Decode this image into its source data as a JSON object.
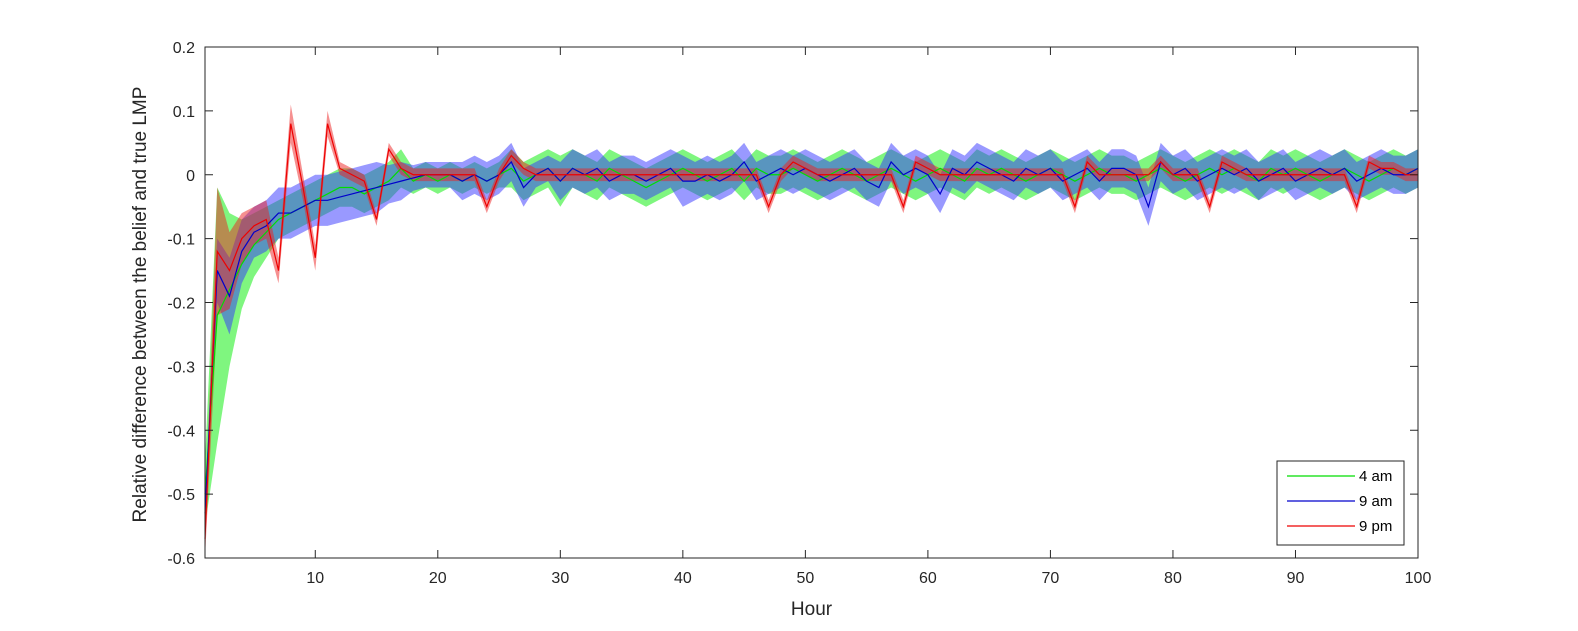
{
  "chart_data": {
    "type": "line",
    "title": "",
    "xlabel": "Hour",
    "ylabel": "Relative difference between the belief and true LMP",
    "xlim": [
      1,
      100
    ],
    "ylim": [
      -0.6,
      0.2
    ],
    "xticks": [
      10,
      20,
      30,
      40,
      50,
      60,
      70,
      80,
      90,
      100
    ],
    "yticks": [
      -0.6,
      -0.5,
      -0.4,
      -0.3,
      -0.2,
      -0.1,
      0,
      0.1,
      0.2
    ],
    "ytick_labels": [
      "-0.6",
      "-0.5",
      "-0.4",
      "-0.3",
      "-0.2",
      "-0.1",
      "0",
      "0.1",
      "0.2"
    ],
    "xtick_labels": [
      "10",
      "20",
      "30",
      "40",
      "50",
      "60",
      "70",
      "80",
      "90",
      "100"
    ],
    "grid": false,
    "box": true,
    "legend_position": "bottom-right",
    "shaded_band": "mean ± spread around each series",
    "series": [
      {
        "name": "4 am",
        "color": "#00dd00",
        "band_color": "#00ee00",
        "x": [
          1,
          2,
          3,
          4,
          5,
          6,
          7,
          8,
          9,
          10,
          11,
          12,
          13,
          14,
          15,
          16,
          17,
          18,
          19,
          20,
          21,
          22,
          23,
          24,
          25,
          26,
          27,
          28,
          29,
          30,
          31,
          32,
          33,
          34,
          35,
          36,
          37,
          38,
          39,
          40,
          41,
          42,
          43,
          44,
          45,
          46,
          47,
          48,
          49,
          50,
          51,
          52,
          53,
          54,
          55,
          56,
          57,
          58,
          59,
          60,
          61,
          62,
          63,
          64,
          65,
          66,
          67,
          68,
          69,
          70,
          71,
          72,
          73,
          74,
          75,
          76,
          77,
          78,
          79,
          80,
          81,
          82,
          83,
          84,
          85,
          86,
          87,
          88,
          89,
          90,
          91,
          92,
          93,
          94,
          95,
          96,
          97,
          98,
          99,
          100
        ],
        "y": [
          -0.5,
          -0.22,
          -0.18,
          -0.14,
          -0.11,
          -0.09,
          -0.07,
          -0.06,
          -0.05,
          -0.04,
          -0.03,
          -0.02,
          -0.02,
          -0.03,
          -0.02,
          -0.01,
          0.01,
          -0.01,
          0.0,
          -0.01,
          0.0,
          -0.01,
          0.0,
          -0.01,
          0.0,
          0.01,
          -0.01,
          0.0,
          0.01,
          -0.01,
          0.01,
          0.0,
          -0.01,
          0.01,
          0.0,
          -0.01,
          -0.02,
          -0.01,
          0.0,
          0.01,
          0.0,
          -0.01,
          0.0,
          0.01,
          -0.01,
          0.01,
          0.0,
          0.0,
          0.01,
          0.0,
          -0.01,
          0.0,
          0.01,
          0.0,
          -0.01,
          0.0,
          0.01,
          0.0,
          -0.01,
          0.0,
          0.01,
          0.0,
          -0.01,
          0.01,
          0.0,
          0.01,
          0.0,
          -0.01,
          0.0,
          0.01,
          0.0,
          -0.01,
          0.0,
          0.01,
          0.0,
          0.0,
          -0.01,
          0.0,
          0.01,
          0.0,
          -0.01,
          0.0,
          0.01,
          0.0,
          0.01,
          0.0,
          -0.01,
          0.01,
          0.0,
          0.01,
          0.0,
          -0.01,
          0.0,
          0.01,
          0.0,
          -0.01,
          0.0,
          0.01,
          0.0,
          0.01
        ],
        "spread": [
          0.05,
          0.2,
          0.12,
          0.07,
          0.05,
          0.04,
          0.03,
          0.03,
          0.03,
          0.03,
          0.03,
          0.03,
          0.03,
          0.03,
          0.03,
          0.03,
          0.03,
          0.02,
          0.02,
          0.02,
          0.02,
          0.02,
          0.02,
          0.02,
          0.02,
          0.03,
          0.03,
          0.03,
          0.03,
          0.04,
          0.03,
          0.03,
          0.03,
          0.03,
          0.03,
          0.03,
          0.03,
          0.03,
          0.03,
          0.03,
          0.03,
          0.03,
          0.03,
          0.03,
          0.03,
          0.03,
          0.03,
          0.03,
          0.03,
          0.03,
          0.03,
          0.03,
          0.03,
          0.03,
          0.03,
          0.03,
          0.03,
          0.03,
          0.03,
          0.03,
          0.03,
          0.03,
          0.03,
          0.03,
          0.03,
          0.03,
          0.03,
          0.03,
          0.03,
          0.03,
          0.03,
          0.03,
          0.03,
          0.03,
          0.03,
          0.03,
          0.03,
          0.03,
          0.03,
          0.03,
          0.03,
          0.03,
          0.03,
          0.03,
          0.03,
          0.03,
          0.03,
          0.03,
          0.03,
          0.03,
          0.03,
          0.03,
          0.03,
          0.03,
          0.03,
          0.03,
          0.03,
          0.03,
          0.03,
          0.03
        ]
      },
      {
        "name": "9 am",
        "color": "#0000cc",
        "band_color": "#3333ff",
        "x": [
          1,
          2,
          3,
          4,
          5,
          6,
          7,
          8,
          9,
          10,
          11,
          12,
          13,
          14,
          15,
          16,
          17,
          18,
          19,
          20,
          21,
          22,
          23,
          24,
          25,
          26,
          27,
          28,
          29,
          30,
          31,
          32,
          33,
          34,
          35,
          36,
          37,
          38,
          39,
          40,
          41,
          42,
          43,
          44,
          45,
          46,
          47,
          48,
          49,
          50,
          51,
          52,
          53,
          54,
          55,
          56,
          57,
          58,
          59,
          60,
          61,
          62,
          63,
          64,
          65,
          66,
          67,
          68,
          69,
          70,
          71,
          72,
          73,
          74,
          75,
          76,
          77,
          78,
          79,
          80,
          81,
          82,
          83,
          84,
          85,
          86,
          87,
          88,
          89,
          90,
          91,
          92,
          93,
          94,
          95,
          96,
          97,
          98,
          99,
          100
        ],
        "y": [
          -0.53,
          -0.15,
          -0.19,
          -0.12,
          -0.09,
          -0.08,
          -0.06,
          -0.06,
          -0.05,
          -0.04,
          -0.04,
          -0.035,
          -0.03,
          -0.025,
          -0.02,
          -0.015,
          -0.01,
          -0.005,
          0.0,
          0.0,
          0.0,
          -0.01,
          0.0,
          -0.01,
          0.0,
          0.02,
          -0.02,
          0.0,
          0.01,
          -0.01,
          0.01,
          0.0,
          0.01,
          -0.01,
          0.0,
          0.0,
          -0.01,
          0.0,
          0.01,
          -0.01,
          -0.01,
          0.0,
          -0.01,
          0.0,
          0.02,
          -0.01,
          0.0,
          0.01,
          0.0,
          0.01,
          0.0,
          -0.01,
          0.0,
          0.01,
          -0.01,
          -0.02,
          0.02,
          0.0,
          0.01,
          0.0,
          -0.03,
          0.01,
          0.0,
          0.02,
          0.01,
          0.0,
          -0.01,
          0.01,
          0.0,
          0.01,
          -0.01,
          0.0,
          0.01,
          -0.01,
          0.01,
          0.01,
          0.0,
          -0.05,
          0.02,
          0.0,
          0.01,
          -0.01,
          0.0,
          0.01,
          0.0,
          0.01,
          -0.01,
          0.0,
          0.01,
          -0.01,
          0.0,
          0.01,
          0.0,
          0.01,
          -0.01,
          0.0,
          0.01,
          0.0,
          0.0,
          0.01
        ],
        "spread": [
          0.02,
          0.05,
          0.06,
          0.05,
          0.04,
          0.04,
          0.04,
          0.04,
          0.04,
          0.04,
          0.04,
          0.04,
          0.04,
          0.04,
          0.04,
          0.03,
          0.03,
          0.02,
          0.02,
          0.02,
          0.02,
          0.03,
          0.03,
          0.03,
          0.03,
          0.03,
          0.03,
          0.02,
          0.02,
          0.03,
          0.03,
          0.03,
          0.03,
          0.03,
          0.03,
          0.03,
          0.03,
          0.03,
          0.03,
          0.04,
          0.03,
          0.03,
          0.03,
          0.03,
          0.03,
          0.03,
          0.03,
          0.03,
          0.03,
          0.03,
          0.03,
          0.03,
          0.03,
          0.03,
          0.03,
          0.03,
          0.03,
          0.03,
          0.03,
          0.03,
          0.03,
          0.03,
          0.03,
          0.03,
          0.03,
          0.03,
          0.03,
          0.03,
          0.03,
          0.03,
          0.03,
          0.03,
          0.03,
          0.03,
          0.03,
          0.03,
          0.03,
          0.03,
          0.03,
          0.03,
          0.03,
          0.03,
          0.03,
          0.03,
          0.03,
          0.03,
          0.03,
          0.03,
          0.03,
          0.03,
          0.03,
          0.03,
          0.03,
          0.03,
          0.03,
          0.03,
          0.03,
          0.03,
          0.03,
          0.03
        ]
      },
      {
        "name": "9 pm",
        "color": "#ee0000",
        "band_color": "#ee2222",
        "x": [
          1,
          2,
          3,
          4,
          5,
          6,
          7,
          8,
          9,
          10,
          11,
          12,
          13,
          14,
          15,
          16,
          17,
          18,
          19,
          20,
          21,
          22,
          23,
          24,
          25,
          26,
          27,
          28,
          29,
          30,
          31,
          32,
          33,
          34,
          35,
          36,
          37,
          38,
          39,
          40,
          41,
          42,
          43,
          44,
          45,
          46,
          47,
          48,
          49,
          50,
          51,
          52,
          53,
          54,
          55,
          56,
          57,
          58,
          59,
          60,
          61,
          62,
          63,
          64,
          65,
          66,
          67,
          68,
          69,
          70,
          71,
          72,
          73,
          74,
          75,
          76,
          77,
          78,
          79,
          80,
          81,
          82,
          83,
          84,
          85,
          86,
          87,
          88,
          89,
          90,
          91,
          92,
          93,
          94,
          95,
          96,
          97,
          98,
          99,
          100
        ],
        "y": [
          -0.57,
          -0.12,
          -0.15,
          -0.1,
          -0.08,
          -0.07,
          -0.15,
          0.08,
          -0.02,
          -0.13,
          0.08,
          0.01,
          0.0,
          -0.01,
          -0.07,
          0.04,
          0.01,
          0.0,
          0.0,
          0.0,
          0.0,
          0.0,
          0.0,
          -0.05,
          0.0,
          0.03,
          0.01,
          0.0,
          0.0,
          0.0,
          0.0,
          0.0,
          0.0,
          0.0,
          0.0,
          0.0,
          0.0,
          0.0,
          0.0,
          0.0,
          0.0,
          0.0,
          0.0,
          0.0,
          0.0,
          0.0,
          -0.05,
          0.0,
          0.02,
          0.01,
          0.0,
          0.0,
          0.0,
          0.0,
          0.0,
          0.0,
          0.0,
          -0.05,
          0.02,
          0.01,
          0.0,
          0.0,
          0.0,
          0.0,
          0.0,
          0.0,
          0.0,
          0.0,
          0.0,
          0.0,
          0.0,
          -0.05,
          0.02,
          0.0,
          0.0,
          0.0,
          0.0,
          0.0,
          0.02,
          0.0,
          0.0,
          0.0,
          -0.05,
          0.02,
          0.01,
          0.0,
          0.0,
          0.0,
          0.0,
          0.0,
          0.0,
          0.0,
          0.0,
          0.0,
          -0.05,
          0.02,
          0.01,
          0.01,
          0.0,
          0.0
        ],
        "spread": [
          0.03,
          0.1,
          0.06,
          0.04,
          0.03,
          0.03,
          0.02,
          0.03,
          0.02,
          0.02,
          0.02,
          0.01,
          0.01,
          0.01,
          0.01,
          0.01,
          0.01,
          0.01,
          0.01,
          0.01,
          0.01,
          0.01,
          0.01,
          0.01,
          0.01,
          0.01,
          0.01,
          0.01,
          0.01,
          0.01,
          0.01,
          0.01,
          0.01,
          0.01,
          0.01,
          0.01,
          0.01,
          0.01,
          0.01,
          0.01,
          0.01,
          0.01,
          0.01,
          0.01,
          0.01,
          0.01,
          0.01,
          0.01,
          0.01,
          0.01,
          0.01,
          0.01,
          0.01,
          0.01,
          0.01,
          0.01,
          0.01,
          0.01,
          0.01,
          0.01,
          0.01,
          0.01,
          0.01,
          0.01,
          0.01,
          0.01,
          0.01,
          0.01,
          0.01,
          0.01,
          0.01,
          0.01,
          0.01,
          0.01,
          0.01,
          0.01,
          0.01,
          0.01,
          0.01,
          0.01,
          0.01,
          0.01,
          0.01,
          0.01,
          0.01,
          0.01,
          0.01,
          0.01,
          0.01,
          0.01,
          0.01,
          0.01,
          0.01,
          0.01,
          0.01,
          0.01,
          0.01,
          0.01,
          0.01,
          0.01
        ]
      }
    ]
  }
}
